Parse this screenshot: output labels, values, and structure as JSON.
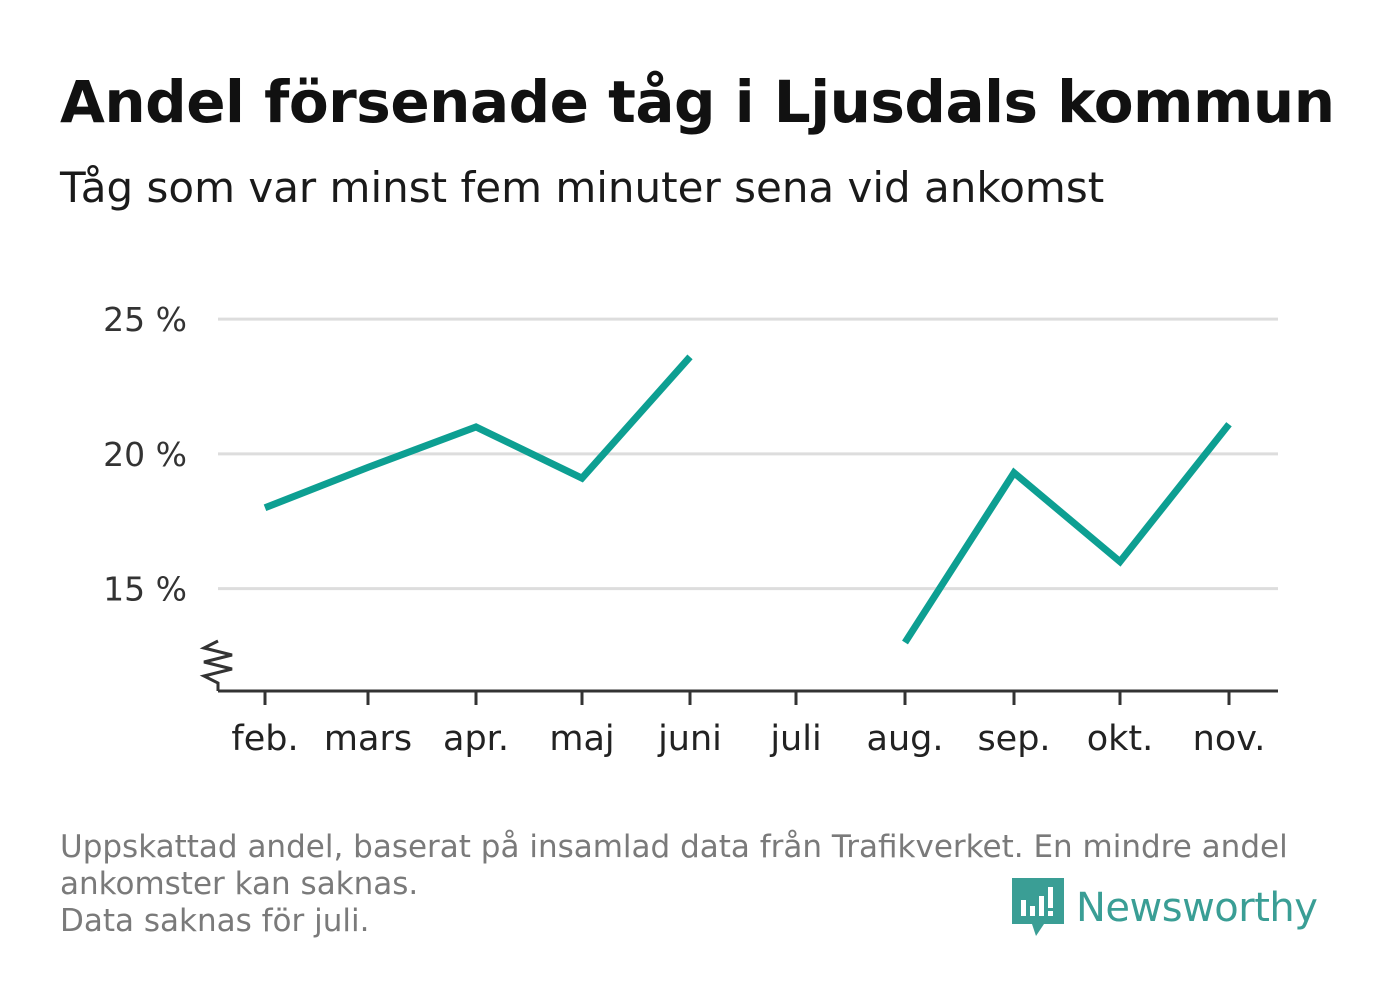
{
  "title": "Andel försenade tåg i Ljusdals kommun",
  "subtitle": "Tåg som var minst fem minuter sena vid ankomst",
  "footnote": {
    "line1": "Uppskattad andel, baserat på insamlad data från Trafikverket. En mindre andel",
    "line2": "ankomster kan saknas.",
    "line3": "Data saknas för juli."
  },
  "brand": {
    "name": "Newsworthy",
    "color": "#3a9e95"
  },
  "colors": {
    "line": "#0d9f92",
    "grid": "#dddddd",
    "axis": "#333333"
  },
  "chart_data": {
    "type": "line",
    "categories": [
      "feb.",
      "mars",
      "apr.",
      "maj",
      "juni",
      "juli",
      "aug.",
      "sep.",
      "okt.",
      "nov."
    ],
    "values": [
      18.0,
      19.5,
      21.0,
      19.1,
      23.6,
      null,
      13.0,
      19.3,
      16.0,
      21.1
    ],
    "yticks": [
      15,
      20,
      25
    ],
    "ytick_labels": [
      "15 %",
      "20 %",
      "25 %"
    ],
    "ylim": [
      11.2,
      25.6
    ],
    "y_axis_break": true,
    "grid": true
  }
}
